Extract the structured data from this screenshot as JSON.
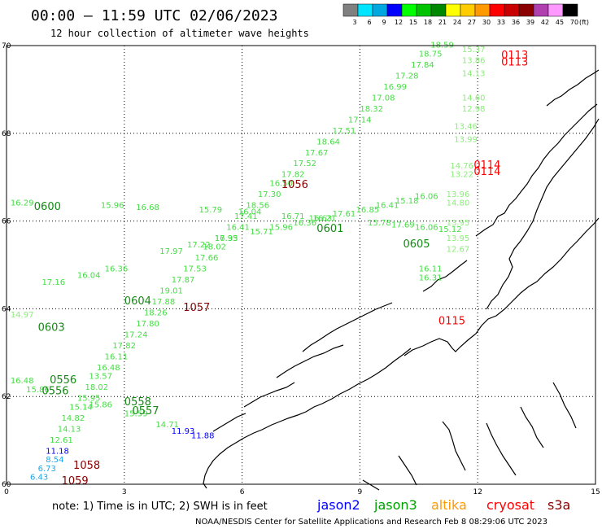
{
  "header": {
    "title": "00:00 – 11:59 UTC 02/06/2023",
    "subtitle": "12 hour collection of altimeter wave heights"
  },
  "colorbar": {
    "unit_label": "(ft)",
    "bins": [
      {
        "label": "3",
        "color": "#808080"
      },
      {
        "label": "6",
        "color": "#00e5ff"
      },
      {
        "label": "9",
        "color": "#00a8e0"
      },
      {
        "label": "12",
        "color": "#0000ff"
      },
      {
        "label": "15",
        "color": "#00ff00"
      },
      {
        "label": "18",
        "color": "#00c400"
      },
      {
        "label": "21",
        "color": "#008800"
      },
      {
        "label": "24",
        "color": "#ffff00"
      },
      {
        "label": "27",
        "color": "#ffcc00"
      },
      {
        "label": "30",
        "color": "#ff9900"
      },
      {
        "label": "33",
        "color": "#ff0000"
      },
      {
        "label": "36",
        "color": "#c80000"
      },
      {
        "label": "39",
        "color": "#8b0000"
      },
      {
        "label": "42",
        "color": "#b040b0"
      },
      {
        "label": "45",
        "color": "#ff99ff"
      },
      {
        "label": "70",
        "color": "#000000"
      }
    ]
  },
  "map": {
    "lon_range": [
      0,
      15
    ],
    "lat_range": [
      60,
      70
    ],
    "x_ticks": [
      "0",
      "3",
      "6",
      "9",
      "12",
      "15"
    ],
    "y_ticks": [
      "70",
      "68",
      "66",
      "64",
      "62",
      "60"
    ],
    "colors": {
      "light_green": "#44dd44",
      "pale_green": "#88ee77",
      "dark_green": "#138a13",
      "blue": "#0000ff",
      "cyan": "#1aa8e8",
      "red": "#ff0000",
      "dark_red": "#8b0000"
    },
    "observations": [
      {
        "lon": 10.8,
        "lat": 69.95,
        "value": "18.59",
        "color": "light_green"
      },
      {
        "lon": 10.5,
        "lat": 69.75,
        "value": "18.75",
        "color": "light_green"
      },
      {
        "lon": 10.3,
        "lat": 69.5,
        "value": "17.84",
        "color": "light_green"
      },
      {
        "lon": 9.9,
        "lat": 69.25,
        "value": "17.28",
        "color": "light_green"
      },
      {
        "lon": 9.6,
        "lat": 69.0,
        "value": "16.99",
        "color": "light_green"
      },
      {
        "lon": 9.3,
        "lat": 68.75,
        "value": "17.08",
        "color": "light_green"
      },
      {
        "lon": 9.0,
        "lat": 68.5,
        "value": "18.32",
        "color": "light_green"
      },
      {
        "lon": 8.7,
        "lat": 68.25,
        "value": "17.14",
        "color": "light_green"
      },
      {
        "lon": 8.3,
        "lat": 68.0,
        "value": "17.51",
        "color": "light_green"
      },
      {
        "lon": 7.9,
        "lat": 67.75,
        "value": "18.64",
        "color": "light_green"
      },
      {
        "lon": 7.6,
        "lat": 67.5,
        "value": "17.67",
        "color": "light_green"
      },
      {
        "lon": 7.3,
        "lat": 67.25,
        "value": "17.52",
        "color": "light_green"
      },
      {
        "lon": 7.0,
        "lat": 67.0,
        "value": "17.82",
        "color": "light_green"
      },
      {
        "lon": 6.7,
        "lat": 66.8,
        "value": "16.50",
        "color": "light_green"
      },
      {
        "lon": 6.4,
        "lat": 66.55,
        "value": "17.30",
        "color": "light_green"
      },
      {
        "lon": 6.1,
        "lat": 66.3,
        "value": "18.56",
        "color": "light_green"
      },
      {
        "lon": 5.8,
        "lat": 66.05,
        "value": "17.41",
        "color": "light_green"
      },
      {
        "lon": 5.6,
        "lat": 65.8,
        "value": "16.41",
        "color": "light_green"
      },
      {
        "lon": 5.3,
        "lat": 65.55,
        "value": "17.93",
        "color": "light_green"
      },
      {
        "lon": 5.0,
        "lat": 65.35,
        "value": "18.02",
        "color": "light_green"
      },
      {
        "lon": 4.8,
        "lat": 65.1,
        "value": "17.66",
        "color": "light_green"
      },
      {
        "lon": 4.5,
        "lat": 64.85,
        "value": "17.53",
        "color": "light_green"
      },
      {
        "lon": 4.2,
        "lat": 64.6,
        "value": "17.87",
        "color": "light_green"
      },
      {
        "lon": 3.9,
        "lat": 64.35,
        "value": "19.01",
        "color": "light_green"
      },
      {
        "lon": 3.7,
        "lat": 64.1,
        "value": "17.88",
        "color": "light_green"
      },
      {
        "lon": 3.5,
        "lat": 63.85,
        "value": "18.26",
        "color": "light_green"
      },
      {
        "lon": 3.3,
        "lat": 63.6,
        "value": "17.80",
        "color": "light_green"
      },
      {
        "lon": 3.0,
        "lat": 63.35,
        "value": "17.24",
        "color": "light_green"
      },
      {
        "lon": 2.7,
        "lat": 63.1,
        "value": "17.82",
        "color": "light_green"
      },
      {
        "lon": 2.5,
        "lat": 62.85,
        "value": "16.11",
        "color": "light_green"
      },
      {
        "lon": 2.3,
        "lat": 62.6,
        "value": "16.48",
        "color": "light_green"
      },
      {
        "lon": 2.1,
        "lat": 62.4,
        "value": "13.57",
        "color": "light_green"
      },
      {
        "lon": 2.0,
        "lat": 62.15,
        "value": "18.02",
        "color": "light_green"
      },
      {
        "lon": 1.8,
        "lat": 61.9,
        "value": "15.95",
        "color": "light_green"
      },
      {
        "lon": 1.6,
        "lat": 61.7,
        "value": "15.14",
        "color": "light_green"
      },
      {
        "lon": 1.4,
        "lat": 61.45,
        "value": "14.82",
        "color": "light_green"
      },
      {
        "lon": 1.3,
        "lat": 61.2,
        "value": "14.13",
        "color": "light_green"
      },
      {
        "lon": 1.1,
        "lat": 60.95,
        "value": "12.61",
        "color": "light_green"
      },
      {
        "lon": 1.0,
        "lat": 60.7,
        "value": "11.18",
        "color": "blue"
      },
      {
        "lon": 1.0,
        "lat": 60.5,
        "value": "8.54",
        "color": "cyan"
      },
      {
        "lon": 0.8,
        "lat": 60.3,
        "value": "6.73",
        "color": "cyan"
      },
      {
        "lon": 0.6,
        "lat": 60.1,
        "value": "6.43",
        "color": "cyan"
      },
      {
        "lon": 0.9,
        "lat": 64.55,
        "value": "17.16",
        "color": "light_green"
      },
      {
        "lon": 1.8,
        "lat": 64.7,
        "value": "16.04",
        "color": "light_green"
      },
      {
        "lon": 2.5,
        "lat": 64.85,
        "value": "16.36",
        "color": "light_green"
      },
      {
        "lon": 3.9,
        "lat": 65.25,
        "value": "17.97",
        "color": "light_green"
      },
      {
        "lon": 4.6,
        "lat": 65.4,
        "value": "17.22",
        "color": "light_green"
      },
      {
        "lon": 5.3,
        "lat": 65.55,
        "value": "16.35",
        "color": "light_green"
      },
      {
        "lon": 6.2,
        "lat": 65.7,
        "value": "15.71",
        "color": "light_green"
      },
      {
        "lon": 6.7,
        "lat": 65.8,
        "value": "15.96",
        "color": "light_green"
      },
      {
        "lon": 7.3,
        "lat": 65.9,
        "value": "16.36",
        "color": "light_green"
      },
      {
        "lon": 7.8,
        "lat": 66.0,
        "value": "16.21",
        "color": "light_green"
      },
      {
        "lon": 8.3,
        "lat": 66.1,
        "value": "17.61",
        "color": "light_green"
      },
      {
        "lon": 8.9,
        "lat": 66.2,
        "value": "16.85",
        "color": "light_green"
      },
      {
        "lon": 9.4,
        "lat": 66.3,
        "value": "16.41",
        "color": "light_green"
      },
      {
        "lon": 9.9,
        "lat": 66.4,
        "value": "15.18",
        "color": "light_green"
      },
      {
        "lon": 10.4,
        "lat": 66.5,
        "value": "16.06",
        "color": "light_green"
      },
      {
        "lon": 0.1,
        "lat": 66.35,
        "value": "16.29",
        "color": "light_green"
      },
      {
        "lon": 2.4,
        "lat": 66.3,
        "value": "15.96",
        "color": "light_green"
      },
      {
        "lon": 3.3,
        "lat": 66.25,
        "value": "16.68",
        "color": "light_green"
      },
      {
        "lon": 4.9,
        "lat": 66.2,
        "value": "15.79",
        "color": "light_green"
      },
      {
        "lon": 5.9,
        "lat": 66.15,
        "value": "16.04",
        "color": "light_green"
      },
      {
        "lon": 7.0,
        "lat": 66.05,
        "value": "16.71",
        "color": "light_green"
      },
      {
        "lon": 7.7,
        "lat": 66.0,
        "value": "16.63",
        "color": "light_green"
      },
      {
        "lon": 9.2,
        "lat": 65.9,
        "value": "15.78",
        "color": "light_green"
      },
      {
        "lon": 9.8,
        "lat": 65.85,
        "value": "17.69",
        "color": "light_green"
      },
      {
        "lon": 10.4,
        "lat": 65.8,
        "value": "16.06",
        "color": "light_green"
      },
      {
        "lon": 11.0,
        "lat": 65.75,
        "value": "15.12",
        "color": "light_green"
      },
      {
        "lon": 10.5,
        "lat": 64.85,
        "value": "16.11",
        "color": "light_green"
      },
      {
        "lon": 10.5,
        "lat": 64.65,
        "value": "16.31",
        "color": "light_green"
      },
      {
        "lon": 0.1,
        "lat": 62.3,
        "value": "16.48",
        "color": "light_green"
      },
      {
        "lon": 0.5,
        "lat": 62.1,
        "value": "15.86",
        "color": "light_green"
      },
      {
        "lon": 2.1,
        "lat": 61.75,
        "value": "15.86",
        "color": "light_green"
      },
      {
        "lon": 3.0,
        "lat": 61.55,
        "value": "15.59",
        "color": "light_green"
      },
      {
        "lon": 3.8,
        "lat": 61.3,
        "value": "14.71",
        "color": "light_green"
      },
      {
        "lon": 4.2,
        "lat": 61.15,
        "value": "11.93",
        "color": "blue"
      },
      {
        "lon": 4.7,
        "lat": 61.05,
        "value": "11.88",
        "color": "blue"
      },
      {
        "lon": 0.1,
        "lat": 63.8,
        "value": "14.97",
        "color": "pale_green"
      },
      {
        "lon": 11.6,
        "lat": 69.85,
        "value": "15.37",
        "color": "pale_green"
      },
      {
        "lon": 11.6,
        "lat": 69.6,
        "value": "13.86",
        "color": "pale_green"
      },
      {
        "lon": 11.6,
        "lat": 69.3,
        "value": "14.13",
        "color": "pale_green"
      },
      {
        "lon": 11.6,
        "lat": 68.75,
        "value": "14.60",
        "color": "pale_green"
      },
      {
        "lon": 11.6,
        "lat": 68.5,
        "value": "12.98",
        "color": "pale_green"
      },
      {
        "lon": 11.4,
        "lat": 68.1,
        "value": "13.46",
        "color": "pale_green"
      },
      {
        "lon": 11.4,
        "lat": 67.8,
        "value": "13.99",
        "color": "pale_green"
      },
      {
        "lon": 11.3,
        "lat": 67.2,
        "value": "14.76",
        "color": "pale_green"
      },
      {
        "lon": 11.3,
        "lat": 67.0,
        "value": "13.22",
        "color": "pale_green"
      },
      {
        "lon": 11.2,
        "lat": 66.55,
        "value": "13.96",
        "color": "pale_green"
      },
      {
        "lon": 11.2,
        "lat": 66.35,
        "value": "14.80",
        "color": "pale_green"
      },
      {
        "lon": 11.2,
        "lat": 65.9,
        "value": "13.95",
        "color": "pale_green"
      },
      {
        "lon": 11.2,
        "lat": 65.55,
        "value": "13.95",
        "color": "pale_green"
      },
      {
        "lon": 11.2,
        "lat": 65.3,
        "value": "12.67",
        "color": "pale_green"
      }
    ],
    "passes": [
      {
        "lon": 0.7,
        "lat": 66.25,
        "label": "0600",
        "color": "dark_green"
      },
      {
        "lon": 7.9,
        "lat": 65.75,
        "label": "0601",
        "color": "dark_green"
      },
      {
        "lon": 10.1,
        "lat": 65.4,
        "label": "0605",
        "color": "dark_green"
      },
      {
        "lon": 3.0,
        "lat": 64.1,
        "label": "0604",
        "color": "dark_green"
      },
      {
        "lon": 0.8,
        "lat": 63.5,
        "label": "0603",
        "color": "dark_green"
      },
      {
        "lon": 1.1,
        "lat": 62.3,
        "label": "0556",
        "color": "dark_green"
      },
      {
        "lon": 0.9,
        "lat": 62.05,
        "label": "0556",
        "color": "dark_green"
      },
      {
        "lon": 3.0,
        "lat": 61.8,
        "label": "0558",
        "color": "dark_green"
      },
      {
        "lon": 3.2,
        "lat": 61.6,
        "label": "0557",
        "color": "dark_green"
      },
      {
        "lon": 7.0,
        "lat": 66.75,
        "label": "1056",
        "color": "dark_red"
      },
      {
        "lon": 4.5,
        "lat": 63.95,
        "label": "1057",
        "color": "dark_red"
      },
      {
        "lon": 1.7,
        "lat": 60.35,
        "label": "1058",
        "color": "dark_red"
      },
      {
        "lon": 1.4,
        "lat": 60.0,
        "label": "1059",
        "color": "dark_red"
      },
      {
        "lon": 12.6,
        "lat": 69.7,
        "label": "0113",
        "color": "red"
      },
      {
        "lon": 12.6,
        "lat": 69.55,
        "label": "0113",
        "color": "red"
      },
      {
        "lon": 11.9,
        "lat": 67.2,
        "label": "0114",
        "color": "red"
      },
      {
        "lon": 11.9,
        "lat": 67.05,
        "label": "0114",
        "color": "red"
      },
      {
        "lon": 11.0,
        "lat": 63.65,
        "label": "0115",
        "color": "red"
      }
    ]
  },
  "footer": {
    "note": "note:  1) Time is in UTC;  2) SWH is in feet",
    "satellites": [
      {
        "name": "jason2",
        "color": "#0000ff"
      },
      {
        "name": "jason3",
        "color": "#00a000"
      },
      {
        "name": "altika",
        "color": "#ff9900"
      },
      {
        "name": "cryosat",
        "color": "#ff0000"
      },
      {
        "name": "s3a",
        "color": "#8b0000"
      }
    ],
    "credit": "NOAA/NESDIS Center for Satellite Applications and Research     Feb  8 08:29:06 UTC 2023"
  }
}
